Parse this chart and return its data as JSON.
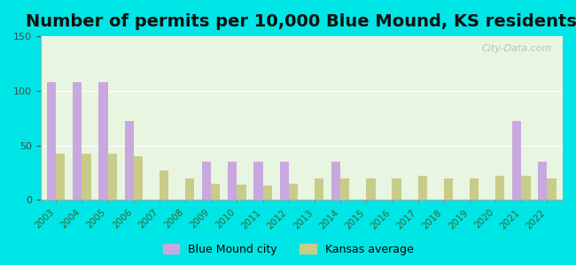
{
  "title": "Number of permits per 10,000 Blue Mound, KS residents",
  "years": [
    2003,
    2004,
    2005,
    2006,
    2007,
    2008,
    2009,
    2010,
    2011,
    2012,
    2013,
    2014,
    2015,
    2016,
    2017,
    2018,
    2019,
    2020,
    2021,
    2022
  ],
  "city_values": [
    108,
    108,
    108,
    72,
    0,
    0,
    35,
    35,
    35,
    35,
    0,
    35,
    0,
    0,
    0,
    0,
    0,
    0,
    72,
    35
  ],
  "kansas_values": [
    42,
    42,
    42,
    40,
    27,
    20,
    15,
    14,
    13,
    15,
    20,
    20,
    20,
    20,
    22,
    20,
    20,
    22,
    22,
    20
  ],
  "city_color": "#c9a8e0",
  "kansas_color": "#c8cc88",
  "ylim": [
    0,
    150
  ],
  "yticks": [
    0,
    50,
    100,
    150
  ],
  "title_fontsize": 14,
  "legend_city": "Blue Mound city",
  "legend_kansas": "Kansas average",
  "bg_outer": "#00e5e5",
  "bg_plot_top": "#e8f5e0",
  "bg_plot_bottom": "#d0f0d0",
  "watermark": "City-Data.com"
}
